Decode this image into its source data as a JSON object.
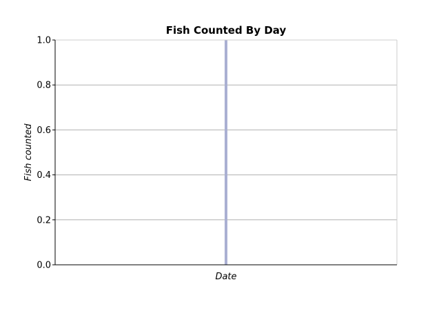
{
  "chart_data": {
    "type": "bar",
    "title": "Fish Counted By Day",
    "xlabel": "Date",
    "ylabel": "Fish counted",
    "ylim": [
      0,
      1.0
    ],
    "yticks": [
      "0.0",
      "0.2",
      "0.4",
      "0.6",
      "0.8",
      "1.0"
    ],
    "categories": [
      ""
    ],
    "values": [
      1.0
    ],
    "grid": true,
    "legend": "none",
    "colors": {
      "bar": "#aab0d2",
      "grid": "#b0b0b0",
      "axis": "#000000",
      "frame": "#cccccc"
    }
  }
}
